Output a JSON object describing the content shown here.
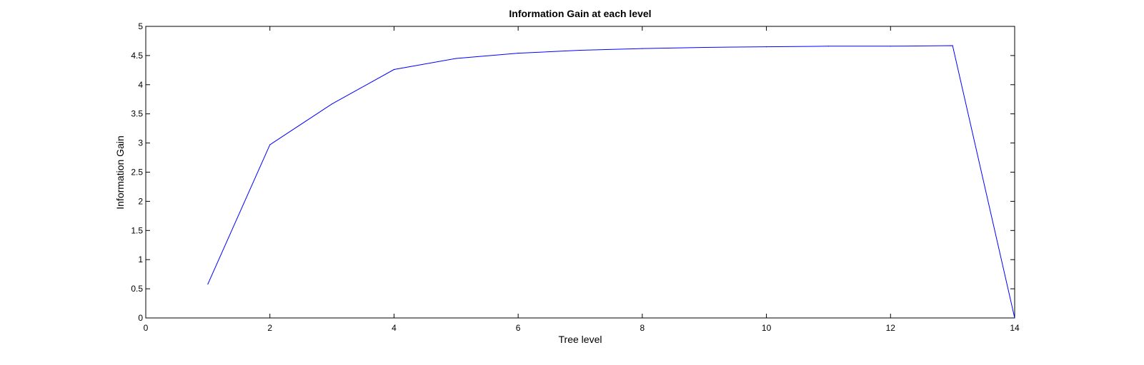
{
  "chart_data": {
    "type": "line",
    "title": "Information Gain at each level",
    "xlabel": "Tree level",
    "ylabel": "Information Gain",
    "xlim": [
      0,
      14
    ],
    "ylim": [
      0,
      5
    ],
    "xticks": [
      0,
      2,
      4,
      6,
      8,
      10,
      12,
      14
    ],
    "yticks": [
      0,
      0.5,
      1,
      1.5,
      2,
      2.5,
      3,
      3.5,
      4,
      4.5,
      5
    ],
    "grid": false,
    "legend": false,
    "line_color": "#0000ff",
    "series": [
      {
        "x": [
          1,
          2,
          3,
          4,
          5,
          6,
          7,
          8,
          9,
          10,
          11,
          12,
          13,
          14
        ],
        "values": [
          0.58,
          2.97,
          3.67,
          4.26,
          4.45,
          4.54,
          4.59,
          4.62,
          4.64,
          4.65,
          4.66,
          4.66,
          4.67,
          0.0
        ]
      }
    ]
  }
}
